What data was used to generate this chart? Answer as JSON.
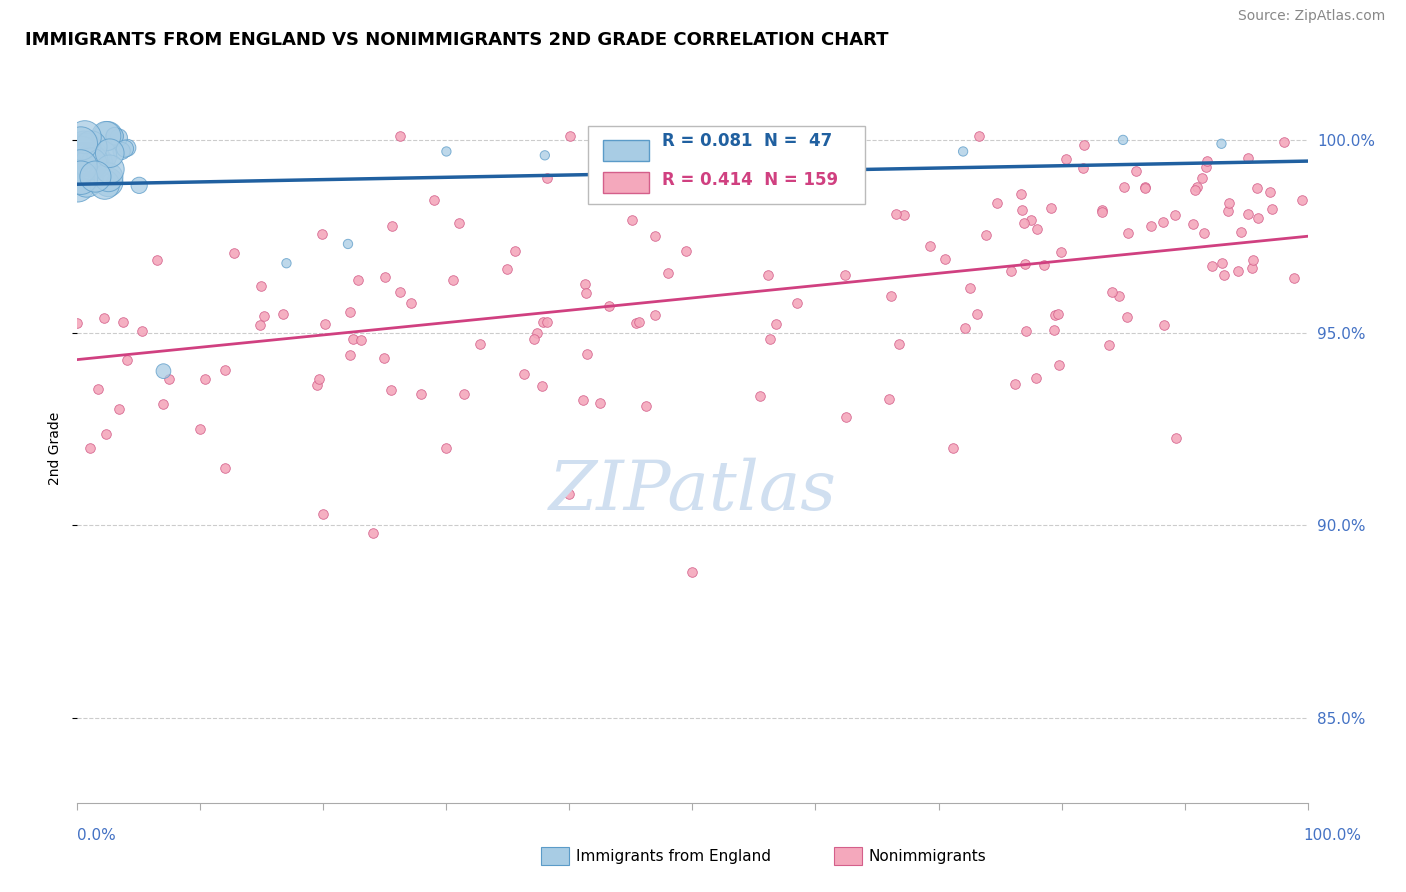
{
  "title": "IMMIGRANTS FROM ENGLAND VS NONIMMIGRANTS 2ND GRADE CORRELATION CHART",
  "source": "Source: ZipAtlas.com",
  "ylabel": "2nd Grade",
  "legend_blue_label": "Immigrants from England",
  "legend_pink_label": "Nonimmigrants",
  "blue_R": 0.081,
  "blue_N": 47,
  "pink_R": 0.414,
  "pink_N": 159,
  "blue_color": "#a8cce4",
  "pink_color": "#f4a8bc",
  "blue_edge_color": "#5b9bc8",
  "pink_edge_color": "#d45f8a",
  "blue_line_color": "#2060a0",
  "pink_line_color": "#d04080",
  "ytick_labels": [
    "85.0%",
    "90.0%",
    "95.0%",
    "100.0%"
  ],
  "ytick_values": [
    0.85,
    0.9,
    0.95,
    1.0
  ],
  "xlim": [
    0.0,
    1.0
  ],
  "ylim": [
    0.828,
    1.012
  ],
  "grid_color": "#cccccc",
  "blue_trend_x": [
    0.0,
    1.0
  ],
  "blue_trend_y": [
    0.9885,
    0.9945
  ],
  "pink_trend_x": [
    0.0,
    1.0
  ],
  "pink_trend_y": [
    0.943,
    0.975
  ],
  "right_tick_color": "#4472c4",
  "watermark_color": "#d0dff0"
}
